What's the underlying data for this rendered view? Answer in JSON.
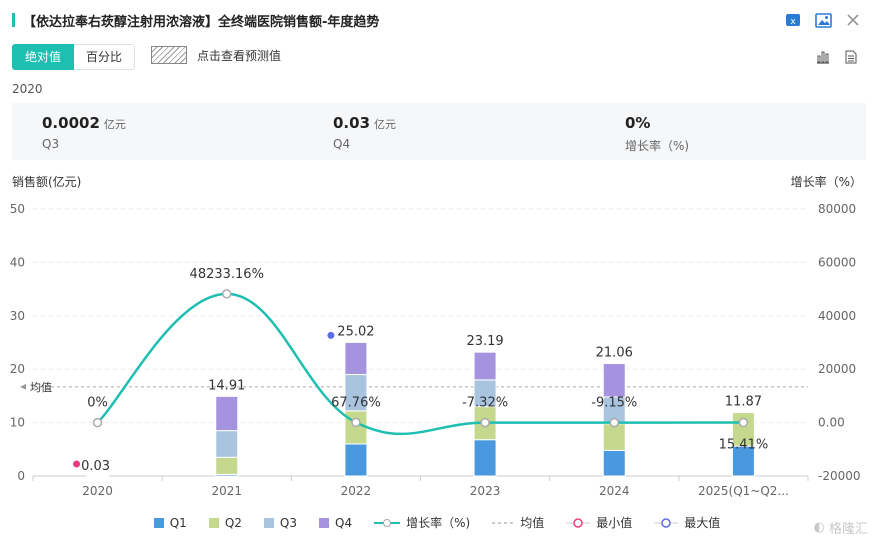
{
  "header": {
    "title": "【依达拉奉右莰醇注射用浓溶液】全终端医院销售额-年度趋势"
  },
  "icons": {
    "excel": "excel-export-icon",
    "image": "image-export-icon",
    "close": "close-icon",
    "bar": "bar-chart-icon",
    "table": "table-view-icon"
  },
  "tabs": [
    {
      "label": "绝对值",
      "active": true
    },
    {
      "label": "百分比",
      "active": false
    }
  ],
  "forecast_label": "点击查看预测值",
  "year": "2020",
  "summary": [
    {
      "value": "0.0002",
      "unit": "亿元",
      "label": "Q3"
    },
    {
      "value": "0.03",
      "unit": "亿元",
      "label": "Q4"
    },
    {
      "value": "0%",
      "unit": "",
      "label": "增长率（%)"
    }
  ],
  "colors": {
    "Q1": "#4a98dd",
    "Q2": "#c5d98e",
    "Q3": "#a9c4de",
    "Q4": "#a693e0",
    "growth": "#1ebfb1",
    "min": "#e8407e",
    "max": "#5a6ee8",
    "avg": "#aaaaaa"
  },
  "chart_data": {
    "type": "bar",
    "stacked": true,
    "categories": [
      "2020",
      "2021",
      "2022",
      "2023",
      "2024",
      "2025(Q1~Q2..."
    ],
    "series": [
      {
        "name": "Q1",
        "values": [
          0,
          0.3,
          6.0,
          6.8,
          4.8,
          5.6
        ]
      },
      {
        "name": "Q2",
        "values": [
          0,
          3.2,
          6.2,
          6.2,
          5.0,
          6.27
        ]
      },
      {
        "name": "Q3",
        "values": [
          0.0002,
          5.0,
          6.8,
          5.0,
          5.0,
          0
        ]
      },
      {
        "name": "Q4",
        "values": [
          0.03,
          6.41,
          6.02,
          5.19,
          6.26,
          0
        ]
      }
    ],
    "totals_labels": [
      "0.03",
      "14.91",
      "25.02",
      "23.19",
      "21.06",
      "11.87"
    ],
    "growth": {
      "name": "增长率（%)",
      "values": [
        0,
        48233.16,
        67.76,
        -7.32,
        -9.15,
        15.41
      ],
      "labels": [
        "0%",
        "48233.16%",
        "67.76%",
        "-7.32%",
        "-9.15%",
        "15.41%"
      ]
    },
    "average_label": "均值",
    "average_value": 16.68,
    "min_index": 0,
    "max_index": 2,
    "yleft": {
      "label": "销售额(亿元)",
      "min": 0,
      "max": 50,
      "ticks": [
        "0",
        "10",
        "20",
        "30",
        "40",
        "50"
      ]
    },
    "yright": {
      "label": "增长率（%）",
      "min": -20000,
      "max": 80000,
      "ticks": [
        "-20000",
        "0.00",
        "20000",
        "40000",
        "60000",
        "80000"
      ]
    },
    "grid": true,
    "legend_position": "bottom"
  },
  "legend": [
    {
      "key": "Q1",
      "label": "Q1"
    },
    {
      "key": "Q2",
      "label": "Q2"
    },
    {
      "key": "Q3",
      "label": "Q3"
    },
    {
      "key": "Q4",
      "label": "Q4"
    },
    {
      "key": "growth",
      "label": "增长率（%)"
    },
    {
      "key": "avg",
      "label": "均值"
    },
    {
      "key": "min",
      "label": "最小值"
    },
    {
      "key": "max",
      "label": "最大值"
    }
  ],
  "watermark": "格隆汇"
}
